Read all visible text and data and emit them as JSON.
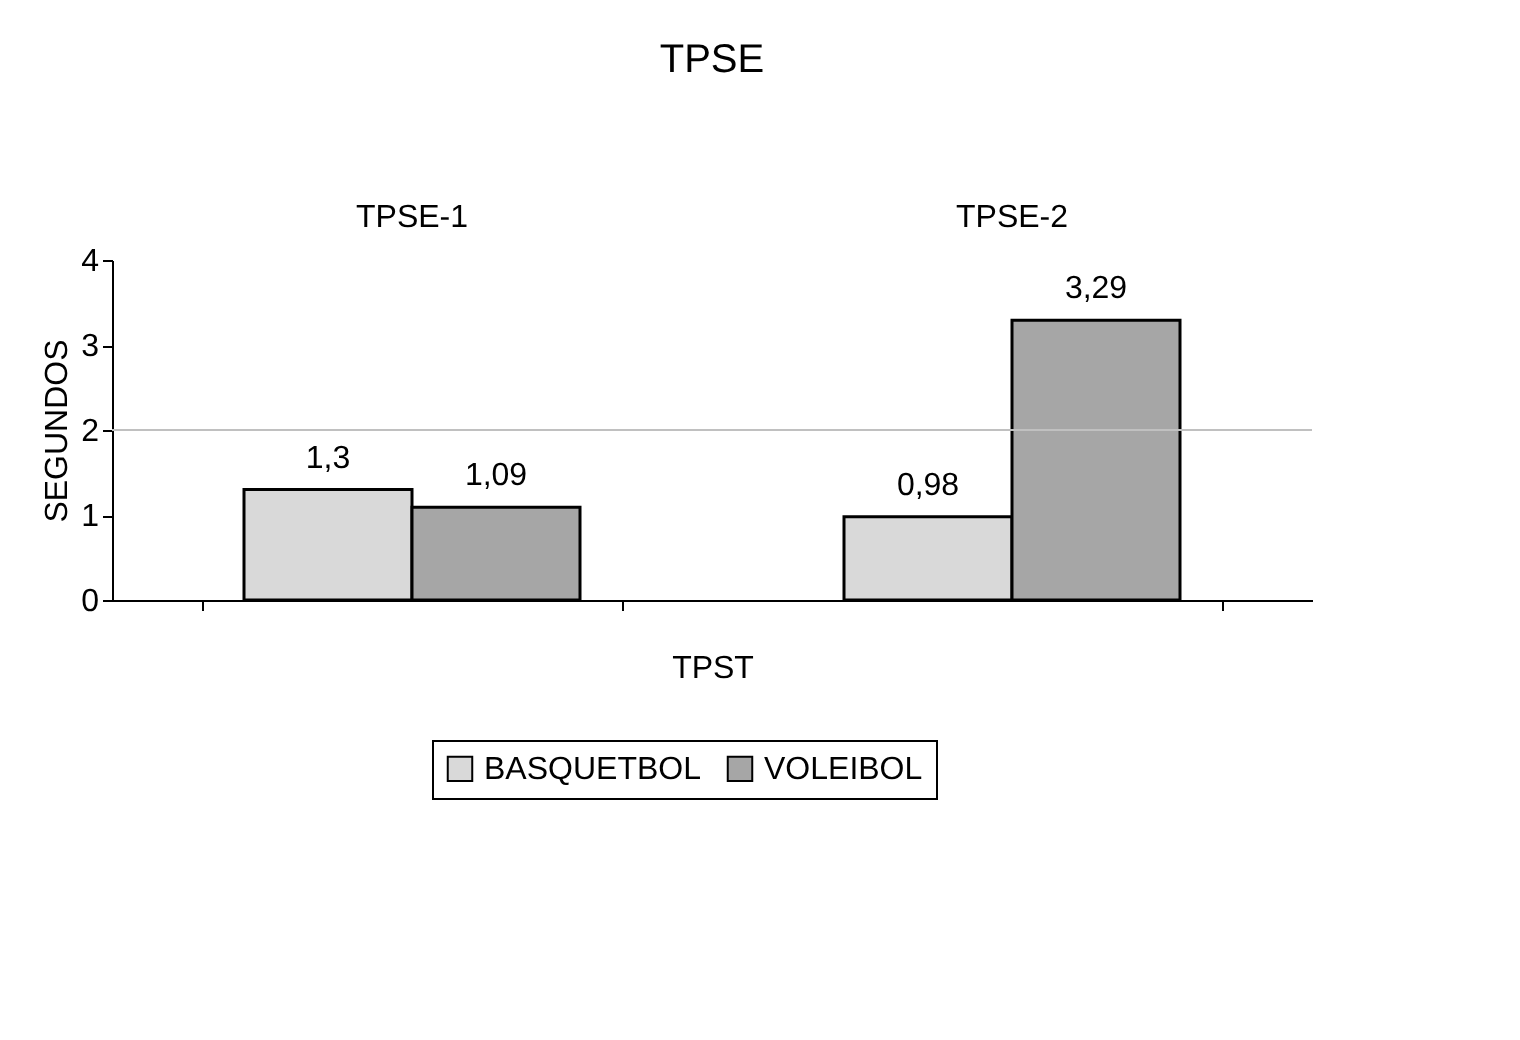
{
  "chart_data": {
    "type": "bar",
    "title": "TPSE",
    "xlabel": "TPST",
    "ylabel": "SEGUNDOS",
    "categories": [
      "TPSE-1",
      "TPSE-2"
    ],
    "series": [
      {
        "name": "BASQUETBOL",
        "color": "#d9d9d9",
        "values": [
          1.3,
          0.98
        ],
        "value_labels": [
          "1,3",
          "0,98"
        ]
      },
      {
        "name": "VOLEIBOL",
        "color": "#a6a6a6",
        "values": [
          1.09,
          3.29
        ],
        "value_labels": [
          "1,09",
          "3,29"
        ]
      }
    ],
    "ylim": [
      0,
      4
    ],
    "yticks": [
      0,
      1,
      2,
      3,
      4
    ],
    "ref_lines": [
      {
        "axis": "y",
        "value": 2,
        "color": "#c0c0c0"
      }
    ],
    "legend": "bottom"
  }
}
